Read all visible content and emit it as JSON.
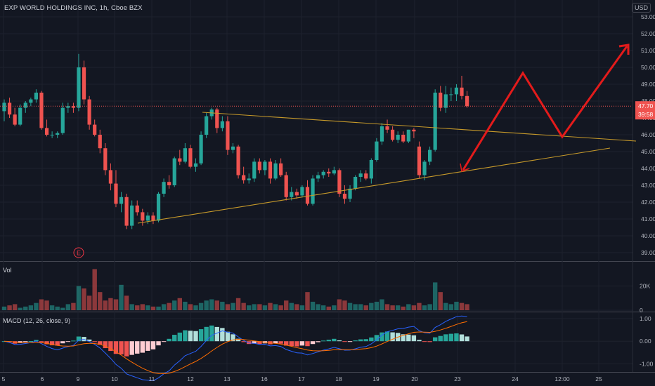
{
  "header": {
    "title": "EXP WORLD HOLDINGS INC, 1h, Cboe BZX",
    "currency": "USD"
  },
  "colors": {
    "background": "#131722",
    "up": "#26a69a",
    "down": "#ef5350",
    "trendline": "#c79a2a",
    "arrow": "#e31b1b",
    "price_label": "#ef5350",
    "macd_line": "#2962ff",
    "signal_line": "#ff6d00"
  },
  "chart_data": [
    {
      "type": "candlestick",
      "name": "price",
      "ylim": [
        38.5,
        54.0
      ],
      "y_ticks": [
        "53.00",
        "52.00",
        "51.00",
        "50.00",
        "49.00",
        "48.00",
        "47.00",
        "46.00",
        "45.00",
        "44.00",
        "43.00",
        "42.00",
        "41.00",
        "40.00",
        "39.00"
      ],
      "x_ticks": [
        "5",
        "6",
        "9",
        "10",
        "11",
        "12",
        "13",
        "16",
        "17",
        "18",
        "19",
        "20",
        "23",
        "24",
        "12:00",
        "25"
      ],
      "last_price": "47.70",
      "countdown": "39:58",
      "earnings_marker": "E",
      "candles": [
        [
          47.4,
          48.1,
          46.8,
          47.9
        ],
        [
          47.9,
          48.2,
          47.0,
          47.2
        ],
        [
          47.2,
          47.6,
          46.5,
          46.6
        ],
        [
          46.6,
          47.8,
          46.5,
          47.6
        ],
        [
          47.6,
          48.0,
          47.3,
          47.9
        ],
        [
          47.9,
          48.2,
          47.7,
          48.1
        ],
        [
          48.1,
          48.7,
          47.9,
          48.5
        ],
        [
          48.5,
          48.6,
          46.3,
          46.4
        ],
        [
          46.4,
          46.9,
          45.9,
          46.0
        ],
        [
          46.0,
          46.2,
          45.8,
          46.0
        ],
        [
          46.0,
          46.2,
          45.8,
          46.1
        ],
        [
          46.1,
          47.9,
          46.0,
          47.6
        ],
        [
          47.6,
          47.9,
          47.3,
          47.7
        ],
        [
          47.7,
          47.9,
          47.3,
          47.6
        ],
        [
          47.6,
          50.8,
          47.4,
          50.0
        ],
        [
          50.0,
          50.4,
          47.8,
          48.1
        ],
        [
          48.1,
          48.3,
          46.3,
          46.6
        ],
        [
          46.6,
          46.9,
          45.9,
          46.0
        ],
        [
          46.0,
          46.3,
          44.9,
          45.2
        ],
        [
          45.2,
          45.5,
          43.6,
          43.9
        ],
        [
          43.9,
          44.3,
          42.7,
          43.1
        ],
        [
          43.1,
          43.9,
          41.7,
          41.9
        ],
        [
          41.9,
          42.6,
          41.4,
          42.3
        ],
        [
          42.3,
          42.5,
          40.4,
          40.6
        ],
        [
          40.6,
          42.1,
          40.4,
          41.8
        ],
        [
          41.8,
          42.1,
          41.2,
          41.4
        ],
        [
          41.4,
          41.6,
          40.6,
          40.9
        ],
        [
          40.9,
          41.4,
          40.7,
          41.2
        ],
        [
          41.2,
          41.4,
          40.7,
          40.9
        ],
        [
          40.9,
          42.6,
          40.8,
          42.5
        ],
        [
          42.5,
          43.4,
          42.3,
          43.2
        ],
        [
          43.2,
          43.6,
          42.8,
          43.0
        ],
        [
          43.0,
          44.7,
          42.9,
          44.6
        ],
        [
          44.6,
          45.1,
          44.2,
          44.4
        ],
        [
          44.4,
          45.5,
          44.3,
          45.2
        ],
        [
          45.2,
          45.4,
          44.0,
          44.1
        ],
        [
          44.1,
          44.6,
          43.8,
          44.3
        ],
        [
          44.3,
          46.2,
          44.2,
          46.0
        ],
        [
          46.0,
          47.3,
          45.8,
          47.1
        ],
        [
          47.1,
          47.6,
          46.9,
          47.5
        ],
        [
          47.5,
          47.6,
          46.1,
          46.4
        ],
        [
          46.4,
          47.1,
          46.2,
          46.8
        ],
        [
          46.8,
          47.1,
          44.8,
          45.1
        ],
        [
          45.1,
          45.5,
          44.9,
          45.3
        ],
        [
          45.3,
          45.4,
          43.4,
          43.6
        ],
        [
          43.6,
          44.1,
          43.1,
          43.3
        ],
        [
          43.3,
          43.7,
          43.1,
          43.4
        ],
        [
          43.4,
          44.6,
          43.2,
          44.4
        ],
        [
          44.4,
          44.6,
          43.7,
          43.9
        ],
        [
          43.9,
          44.5,
          43.6,
          44.4
        ],
        [
          44.4,
          44.6,
          43.1,
          43.4
        ],
        [
          43.4,
          44.5,
          43.3,
          44.3
        ],
        [
          44.3,
          44.6,
          43.5,
          43.6
        ],
        [
          43.6,
          43.8,
          42.1,
          42.3
        ],
        [
          42.3,
          42.9,
          42.1,
          42.6
        ],
        [
          42.6,
          42.8,
          42.2,
          42.4
        ],
        [
          42.4,
          43.0,
          42.3,
          42.9
        ],
        [
          42.9,
          43.3,
          41.8,
          41.9
        ],
        [
          41.9,
          43.6,
          41.8,
          43.4
        ],
        [
          43.4,
          43.8,
          43.2,
          43.6
        ],
        [
          43.6,
          43.9,
          43.4,
          43.8
        ],
        [
          43.8,
          44.0,
          43.5,
          43.7
        ],
        [
          43.7,
          44.1,
          43.6,
          43.9
        ],
        [
          43.9,
          44.0,
          42.3,
          42.5
        ],
        [
          42.5,
          43.0,
          41.9,
          42.2
        ],
        [
          42.2,
          43.0,
          42.0,
          42.8
        ],
        [
          42.8,
          43.6,
          42.7,
          43.5
        ],
        [
          43.5,
          43.9,
          43.2,
          43.7
        ],
        [
          43.7,
          43.9,
          43.3,
          43.4
        ],
        [
          43.4,
          44.6,
          43.1,
          44.5
        ],
        [
          44.5,
          45.8,
          44.4,
          45.6
        ],
        [
          45.6,
          46.7,
          45.4,
          46.5
        ],
        [
          46.5,
          46.9,
          46.1,
          46.3
        ],
        [
          46.3,
          46.5,
          45.6,
          45.7
        ],
        [
          45.7,
          46.2,
          45.5,
          46.0
        ],
        [
          46.0,
          46.2,
          45.5,
          45.6
        ],
        [
          45.6,
          46.3,
          45.5,
          46.3
        ],
        [
          46.3,
          46.4,
          45.8,
          46.2
        ],
        [
          45.3,
          45.6,
          43.4,
          43.6
        ],
        [
          43.6,
          44.5,
          43.3,
          44.4
        ],
        [
          44.4,
          45.3,
          44.2,
          45.1
        ],
        [
          45.1,
          48.7,
          45.0,
          48.5
        ],
        [
          48.5,
          48.9,
          47.4,
          47.6
        ],
        [
          47.6,
          48.9,
          47.3,
          48.4
        ],
        [
          48.4,
          48.8,
          48.0,
          48.4
        ],
        [
          48.4,
          49.0,
          48.0,
          48.8
        ],
        [
          48.8,
          49.5,
          48.1,
          48.3
        ],
        [
          48.3,
          48.6,
          47.6,
          47.7
        ]
      ]
    },
    {
      "type": "bar",
      "name": "Vol",
      "y_ticks": [
        "20K",
        "0"
      ],
      "values": [
        3,
        4,
        5,
        2,
        3,
        4,
        6,
        9,
        8,
        4,
        3,
        2,
        5,
        6,
        20,
        18,
        12,
        34,
        15,
        8,
        10,
        9,
        21,
        12,
        5,
        4,
        5,
        4,
        3,
        3,
        5,
        6,
        8,
        10,
        7,
        5,
        4,
        6,
        8,
        9,
        8,
        7,
        5,
        6,
        10,
        6,
        4,
        5,
        5,
        4,
        6,
        5,
        4,
        8,
        6,
        5,
        4,
        15,
        7,
        5,
        4,
        3,
        4,
        9,
        8,
        6,
        5,
        5,
        4,
        6,
        7,
        9,
        5,
        4,
        4,
        3,
        5,
        4,
        6,
        4,
        5,
        23,
        15,
        6,
        5,
        7,
        6,
        5
      ]
    },
    {
      "type": "line",
      "name": "MACD (12, 26, close, 9)",
      "ylim": [
        -1.3,
        1.25
      ],
      "y_ticks": [
        "1.00",
        "0.00",
        "-1.00"
      ]
    }
  ],
  "annotations": {
    "upper_trendline": "descending resistance",
    "lower_trendline": "ascending support",
    "forecast_arrow": "red zig-zag projection"
  }
}
